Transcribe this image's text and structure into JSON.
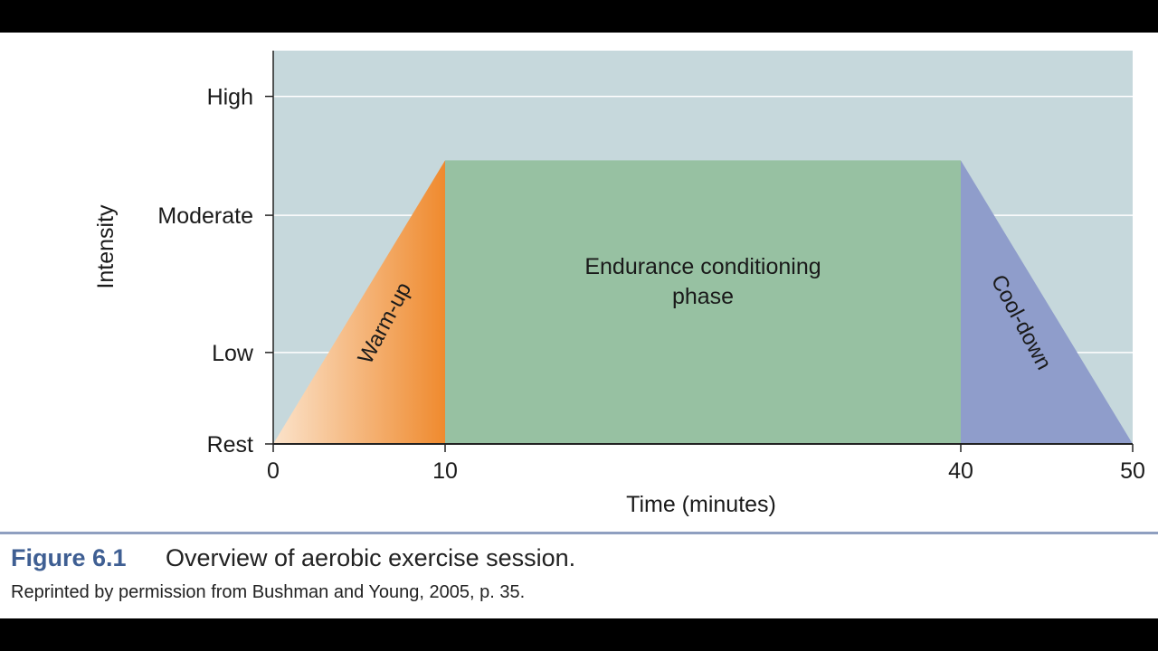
{
  "caption": {
    "figure_label": "Figure 6.1",
    "title": "Overview of aerobic exercise session.",
    "credit": "Reprinted by permission from Bushman and Young, 2005, p. 35."
  },
  "colors": {
    "plot_background": "#c6d8dc",
    "warmup_light": "#fbe3cb",
    "warmup_dark": "#ef8a2e",
    "endurance": "#97c1a2",
    "cooldown": "#8f9dcb",
    "caption_accent": "#3f5f93"
  },
  "chart_data": {
    "type": "area",
    "xlabel": "Time (minutes)",
    "ylabel": "Intensity",
    "xlim": [
      0,
      50
    ],
    "y_levels": [
      "Rest",
      "Low",
      "Moderate",
      "High"
    ],
    "x_ticks": [
      {
        "value": 0,
        "label": "0"
      },
      {
        "value": 10,
        "label": "10"
      },
      {
        "value": 40,
        "label": "40"
      },
      {
        "value": 50,
        "label": "50"
      }
    ],
    "y_ticks": [
      {
        "value": 0,
        "label": "Rest"
      },
      {
        "value": 1,
        "label": "Low"
      },
      {
        "value": 2.5,
        "label": "Moderate"
      },
      {
        "value": 3.8,
        "label": "High"
      }
    ],
    "ylim": [
      0,
      4.3
    ],
    "grid": true,
    "phases": [
      {
        "label": "Warm-up",
        "x_start": 0,
        "x_end": 10,
        "y_start": 0,
        "y_end": 3.1
      },
      {
        "label": "Endurance conditioning phase",
        "x_start": 10,
        "x_end": 40,
        "y_start": 3.1,
        "y_end": 3.1
      },
      {
        "label": "Cool-down",
        "x_start": 40,
        "x_end": 50,
        "y_start": 3.1,
        "y_end": 0
      }
    ]
  }
}
